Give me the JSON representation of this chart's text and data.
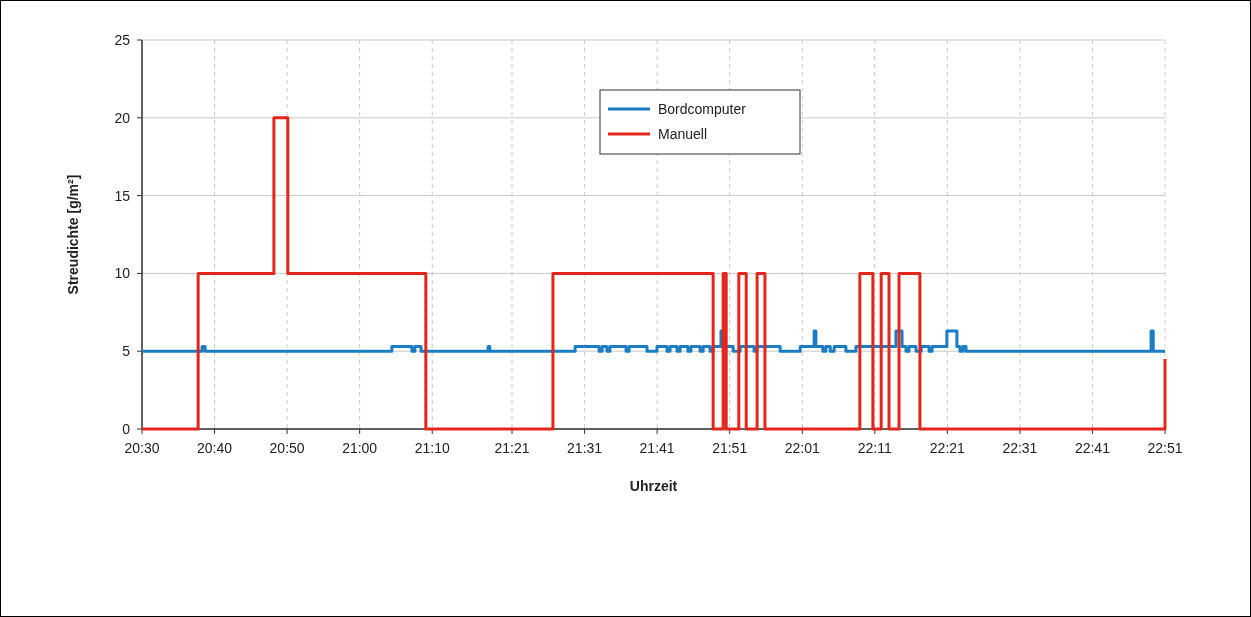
{
  "chart_data": {
    "type": "step",
    "xlabel": "Uhrzeit",
    "ylabel": "Streudichte [g/m²]",
    "xlim": [
      20.5,
      22.85
    ],
    "ylim": [
      0,
      25
    ],
    "yticks": [
      0,
      5,
      10,
      15,
      20,
      25
    ],
    "xticks": [
      {
        "value": 20.5,
        "label": "20:30"
      },
      {
        "value": 20.6667,
        "label": "20:40"
      },
      {
        "value": 20.8333,
        "label": "20:50"
      },
      {
        "value": 21,
        "label": "21:00"
      },
      {
        "value": 21.1667,
        "label": "21:10"
      },
      {
        "value": 21.35,
        "label": "21:21"
      },
      {
        "value": 21.5167,
        "label": "21:31"
      },
      {
        "value": 21.6833,
        "label": "21:41"
      },
      {
        "value": 21.85,
        "label": "21:51"
      },
      {
        "value": 22.0167,
        "label": "22:01"
      },
      {
        "value": 22.1833,
        "label": "22:11"
      },
      {
        "value": 22.35,
        "label": "22:21"
      },
      {
        "value": 22.5167,
        "label": "22:31"
      },
      {
        "value": 22.6833,
        "label": "22:41"
      },
      {
        "value": 22.85,
        "label": "22:51"
      }
    ],
    "grid": true,
    "legend": "top",
    "line_style": "solid",
    "series": [
      {
        "name": "Bordcomputer",
        "color": "#1a7cc1",
        "x": [
          20.5,
          20.638,
          20.645,
          21.074,
          21.12,
          21.127,
          21.141,
          21.295,
          21.299,
          21.495,
          21.55,
          21.557,
          21.568,
          21.575,
          21.612,
          21.619,
          21.66,
          21.683,
          21.706,
          21.713,
          21.729,
          21.736,
          21.754,
          21.761,
          21.782,
          21.789,
          21.805,
          21.812,
          21.83,
          21.837,
          21.858,
          21.874,
          21.906,
          21.913,
          21.966,
          22.012,
          22.044,
          22.048,
          22.064,
          22.071,
          22.081,
          22.09,
          22.117,
          22.14,
          22.232,
          22.246,
          22.255,
          22.262,
          22.278,
          22.29,
          22.308,
          22.315,
          22.349,
          22.372,
          22.379,
          22.386,
          22.393,
          22.818,
          22.823,
          22.85
        ],
        "values": [
          5,
          5.3,
          5,
          5.3,
          5,
          5.3,
          5,
          5.3,
          5,
          5.3,
          5,
          5.3,
          5,
          5.3,
          5,
          5.3,
          5,
          5.3,
          5,
          5.3,
          5,
          5.3,
          5,
          5.3,
          5,
          5.3,
          5,
          5.3,
          6.3,
          5.3,
          5,
          5.3,
          5,
          5.3,
          5,
          5.3,
          6.3,
          5.3,
          5,
          5.3,
          5,
          5.3,
          5,
          5.3,
          6.3,
          5.3,
          5,
          5.3,
          5,
          5.3,
          5,
          5.3,
          6.3,
          5.3,
          5,
          5.3,
          5,
          6.3,
          5,
          5
        ]
      },
      {
        "name": "Manuell",
        "color": "#e2261c",
        "x": [
          20.5,
          20.629,
          20.803,
          20.835,
          21.152,
          21.444,
          21.812,
          21.835,
          21.842,
          21.871,
          21.888,
          21.913,
          21.931,
          22.149,
          22.179,
          22.198,
          22.216,
          22.239,
          22.287,
          22.85
        ],
        "values": [
          0,
          10,
          20,
          10,
          0,
          10,
          0,
          10,
          0,
          10,
          0,
          10,
          0,
          10,
          0,
          10,
          0,
          10,
          0,
          4.5
        ]
      }
    ]
  }
}
